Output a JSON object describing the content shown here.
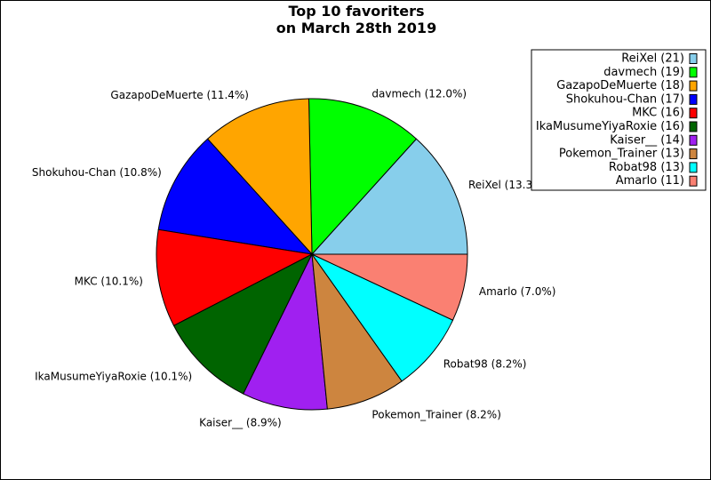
{
  "chart_data": {
    "type": "pie",
    "title": "Top 10 favoriters",
    "subtitle": "on March 28th 2019",
    "slices": [
      {
        "name": "ReiXel",
        "value": 21,
        "percent_label": "13.3%",
        "color": "#87ceeb"
      },
      {
        "name": "davmech",
        "value": 19,
        "percent_label": "12.0%",
        "color": "#00ff00"
      },
      {
        "name": "GazapoDeMuerte",
        "value": 18,
        "percent_label": "11.4%",
        "color": "#ffa500"
      },
      {
        "name": "Shokuhou-Chan",
        "value": 17,
        "percent_label": "10.8%",
        "color": "#0000ff"
      },
      {
        "name": "MKC",
        "value": 16,
        "percent_label": "10.1%",
        "color": "#ff0000"
      },
      {
        "name": "IkaMusumeYiyaRoxie",
        "value": 16,
        "percent_label": "10.1%",
        "color": "#006400"
      },
      {
        "name": "Kaiser__",
        "value": 14,
        "percent_label": "8.9%",
        "color": "#a020f0"
      },
      {
        "name": "Pokemon_Trainer",
        "value": 13,
        "percent_label": "8.2%",
        "color": "#cd853f"
      },
      {
        "name": "Robat98",
        "value": 13,
        "percent_label": "8.2%",
        "color": "#00ffff"
      },
      {
        "name": "Amarlo",
        "value": 11,
        "percent_label": "7.0%",
        "color": "#fa8072"
      }
    ],
    "start_angle_deg": 0,
    "direction": "counterclockwise",
    "legend_position": "top-right"
  }
}
